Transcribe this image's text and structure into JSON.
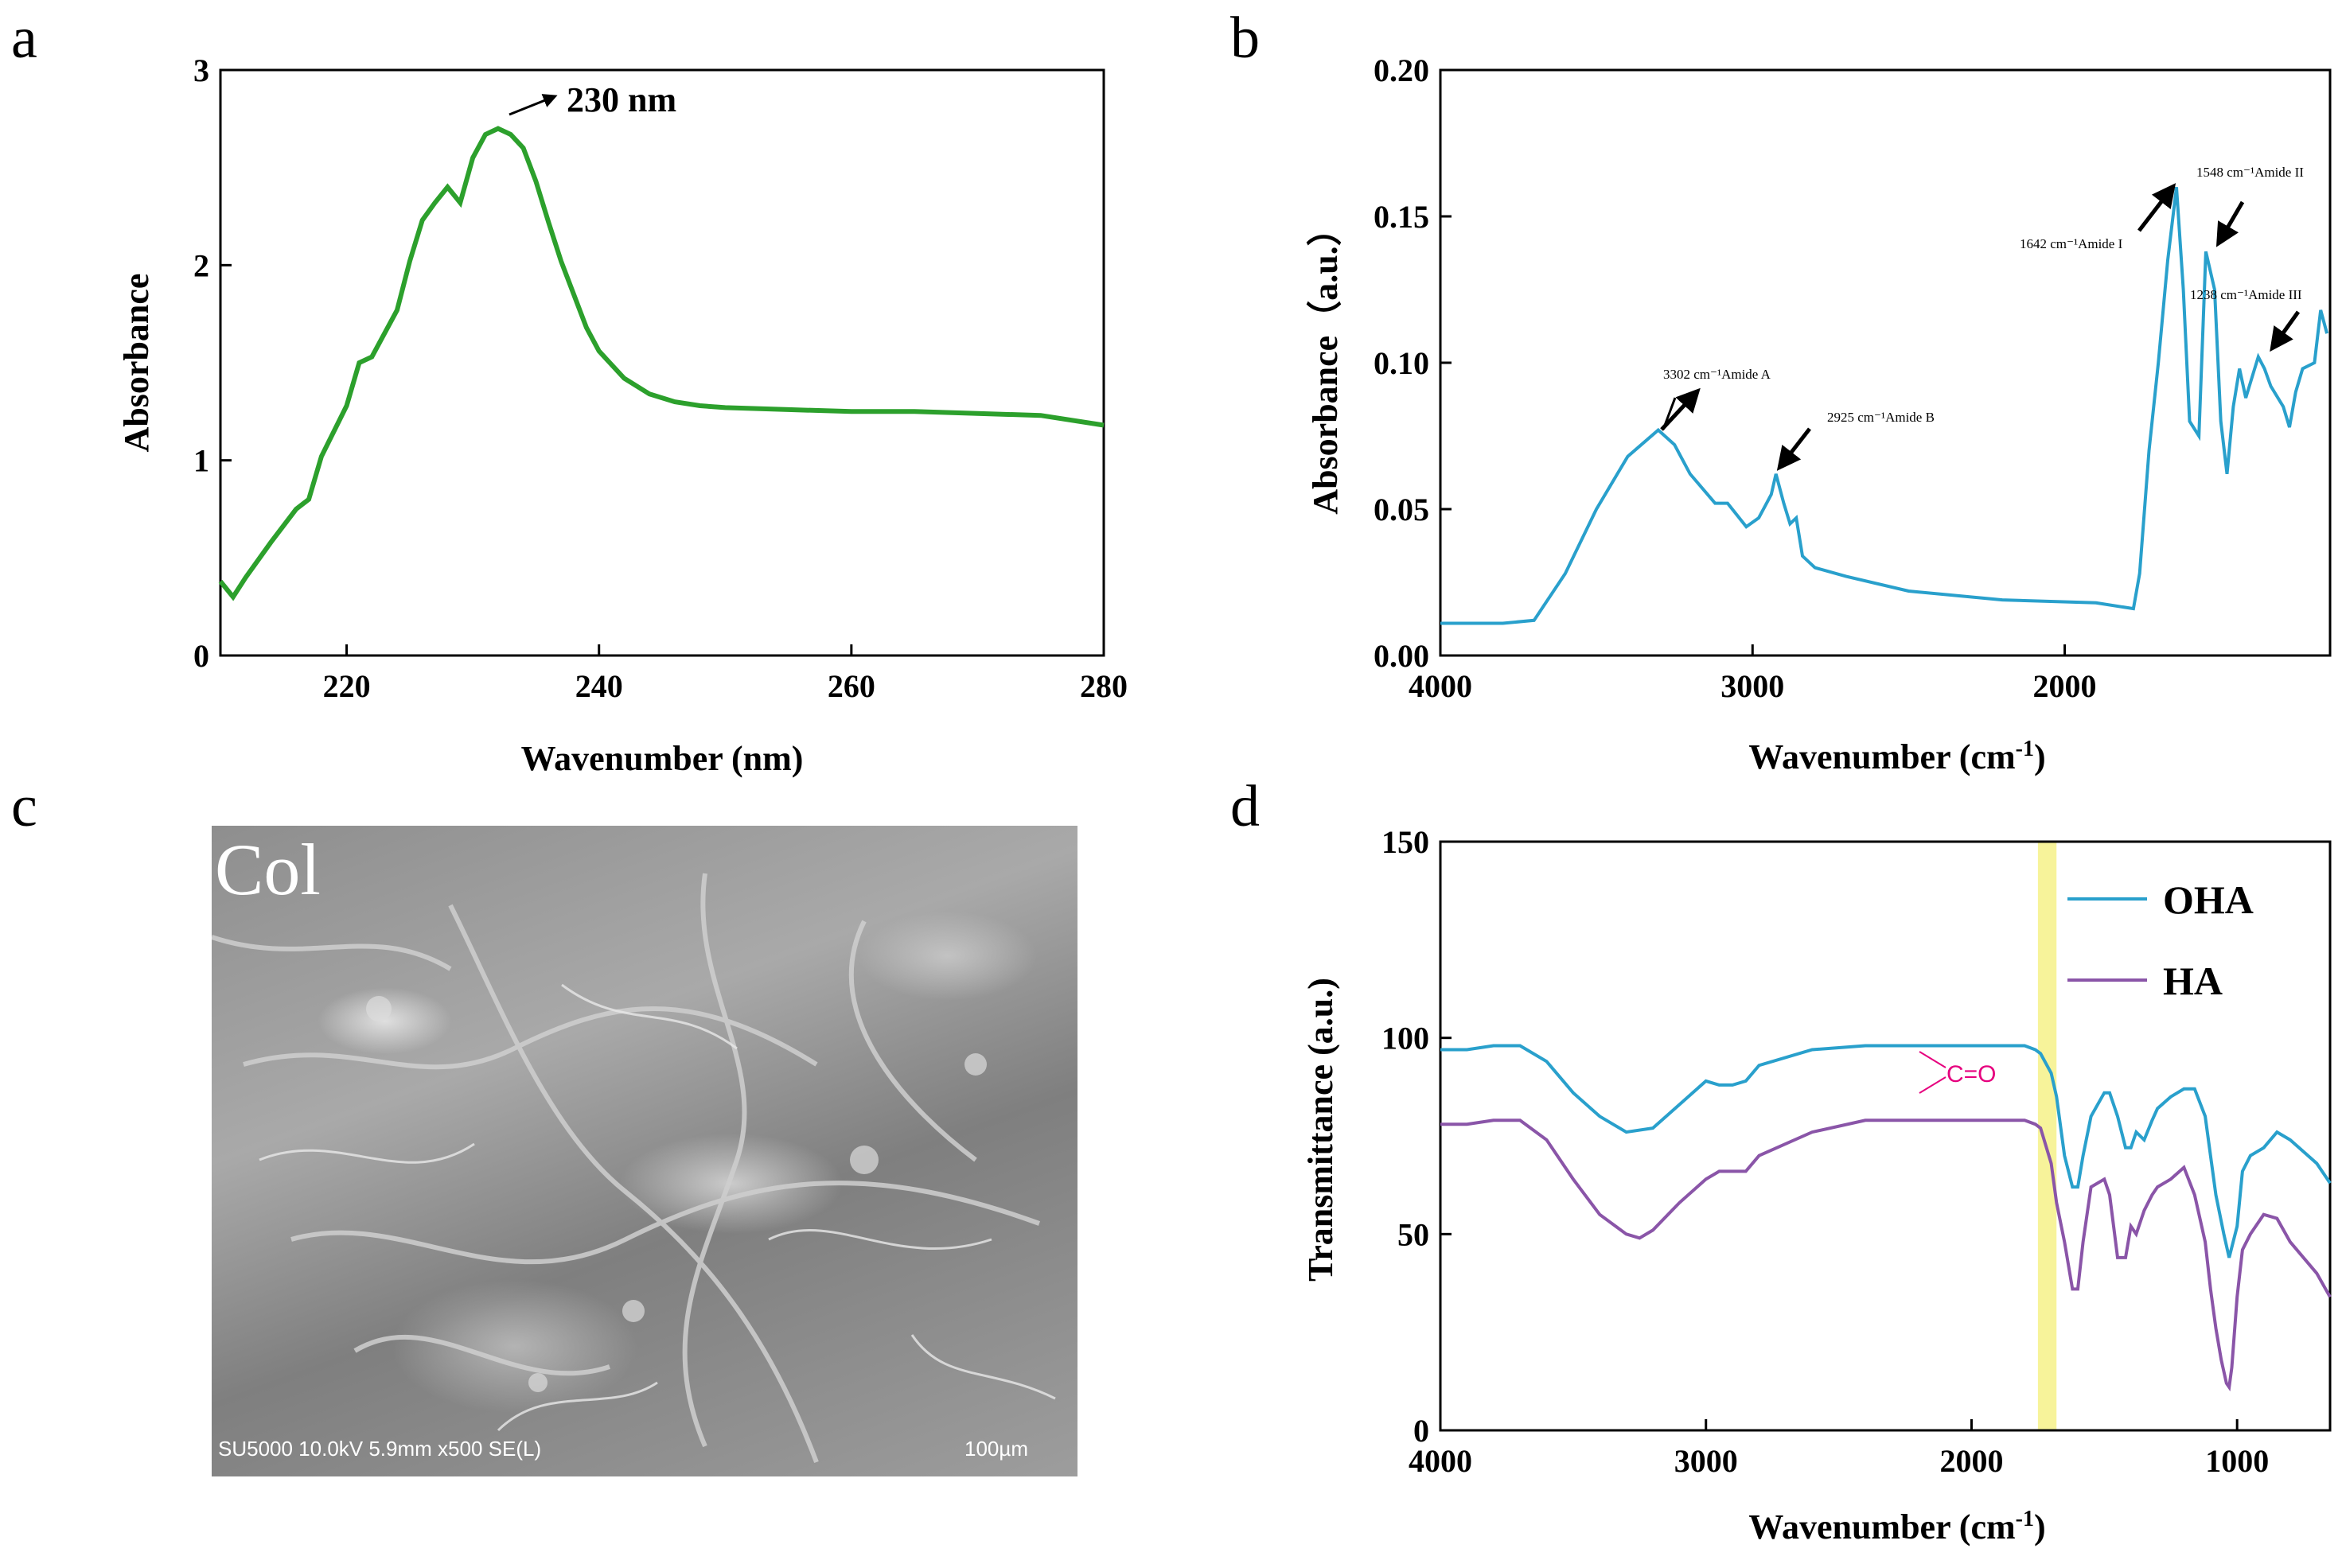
{
  "panels": {
    "a": "a",
    "b": "b",
    "c": "c",
    "d": "d"
  },
  "chart_data": [
    {
      "panel": "a",
      "type": "line",
      "xlabel": "Wavenumber (nm)",
      "ylabel": "Absorbance",
      "xlim": [
        210,
        280
      ],
      "ylim": [
        0,
        3
      ],
      "xticks": [
        "220",
        "240",
        "260",
        "280"
      ],
      "yticks": [
        "0",
        "1",
        "2",
        "3"
      ],
      "color": "#2ca02c",
      "annotation": "230 nm",
      "x": [
        210,
        211,
        212,
        214,
        216,
        217,
        218,
        220,
        221,
        222,
        224,
        225,
        226,
        227,
        228,
        229,
        230,
        231,
        232,
        233,
        234,
        235,
        236,
        237,
        238,
        239,
        240,
        242,
        244,
        246,
        248,
        250,
        255,
        260,
        265,
        270,
        275,
        280
      ],
      "y": [
        0.38,
        0.3,
        0.4,
        0.58,
        0.75,
        0.8,
        1.02,
        1.28,
        1.5,
        1.53,
        1.77,
        2.02,
        2.23,
        2.32,
        2.4,
        2.32,
        2.55,
        2.67,
        2.7,
        2.67,
        2.6,
        2.43,
        2.22,
        2.02,
        1.85,
        1.68,
        1.56,
        1.42,
        1.34,
        1.3,
        1.28,
        1.27,
        1.26,
        1.25,
        1.25,
        1.24,
        1.23,
        1.18
      ]
    },
    {
      "panel": "b",
      "type": "line",
      "xlabel": "Wavenumber (cm",
      "xlabel_sup": "-1",
      "xlabel_end": ")",
      "ylabel": "Absorbance（a.u.）",
      "xlim": [
        4000,
        1150
      ],
      "ylim": [
        0,
        0.2
      ],
      "xticks": [
        "4000",
        "3000",
        "2000"
      ],
      "yticks": [
        "0.00",
        "0.05",
        "0.10",
        "0.15",
        "0.20"
      ],
      "color": "#29a0cc",
      "annotations": [
        "3302 cm⁻¹Amide A",
        "2925 cm⁻¹Amide B",
        "1642 cm⁻¹Amide I",
        "1548 cm⁻¹Amide II",
        "1238 cm⁻¹Amide III"
      ],
      "x": [
        4000,
        3800,
        3700,
        3600,
        3500,
        3400,
        3302,
        3250,
        3200,
        3120,
        3080,
        3020,
        2980,
        2940,
        2925,
        2900,
        2880,
        2860,
        2840,
        2800,
        2700,
        2500,
        2200,
        1900,
        1780,
        1760,
        1730,
        1700,
        1670,
        1642,
        1620,
        1600,
        1570,
        1548,
        1520,
        1500,
        1480,
        1460,
        1440,
        1420,
        1400,
        1380,
        1360,
        1340,
        1300,
        1280,
        1260,
        1238,
        1200,
        1180,
        1160
      ],
      "y": [
        0.011,
        0.011,
        0.012,
        0.028,
        0.05,
        0.068,
        0.077,
        0.072,
        0.062,
        0.052,
        0.052,
        0.044,
        0.047,
        0.055,
        0.062,
        0.052,
        0.045,
        0.047,
        0.034,
        0.03,
        0.027,
        0.022,
        0.019,
        0.018,
        0.016,
        0.028,
        0.07,
        0.1,
        0.135,
        0.16,
        0.125,
        0.08,
        0.075,
        0.138,
        0.125,
        0.08,
        0.062,
        0.085,
        0.098,
        0.088,
        0.095,
        0.102,
        0.098,
        0.092,
        0.085,
        0.078,
        0.09,
        0.098,
        0.1,
        0.118,
        0.11
      ]
    },
    {
      "panel": "d",
      "type": "line",
      "xlabel": "Wavenumber (cm",
      "xlabel_sup": "-1",
      "xlabel_end": ")",
      "ylabel": "Transmittance (a.u.)",
      "xlim": [
        4000,
        650
      ],
      "ylim": [
        0,
        150
      ],
      "xticks": [
        "4000",
        "3000",
        "2000",
        "1000"
      ],
      "yticks": [
        "0",
        "50",
        "100",
        "150"
      ],
      "highlight": {
        "from": 1750,
        "to": 1680,
        "color": "#f7f39a"
      },
      "annotation": "C=O",
      "annotation_color": "#e6007e",
      "series": [
        {
          "name": "OHA",
          "color": "#29a0cc",
          "x": [
            4000,
            3900,
            3800,
            3700,
            3600,
            3500,
            3400,
            3300,
            3200,
            3100,
            3000,
            2950,
            2900,
            2850,
            2800,
            2600,
            2400,
            2200,
            2000,
            1800,
            1760,
            1740,
            1700,
            1680,
            1650,
            1620,
            1600,
            1580,
            1550,
            1500,
            1480,
            1450,
            1420,
            1400,
            1380,
            1350,
            1320,
            1300,
            1250,
            1200,
            1160,
            1120,
            1100,
            1080,
            1050,
            1030,
            1000,
            980,
            950,
            900,
            850,
            800,
            700,
            650
          ],
          "y": [
            97,
            97,
            98,
            98,
            94,
            86,
            80,
            76,
            77,
            83,
            89,
            88,
            88,
            89,
            93,
            97,
            98,
            98,
            98,
            98,
            97,
            96,
            91,
            85,
            70,
            62,
            62,
            70,
            80,
            86,
            86,
            80,
            72,
            72,
            76,
            74,
            79,
            82,
            85,
            87,
            87,
            80,
            70,
            60,
            50,
            44,
            52,
            66,
            70,
            72,
            76,
            74,
            68,
            63
          ]
        },
        {
          "name": "HA",
          "color": "#8a55a8",
          "x": [
            4000,
            3900,
            3800,
            3700,
            3600,
            3500,
            3400,
            3300,
            3250,
            3200,
            3100,
            3000,
            2950,
            2900,
            2850,
            2800,
            2600,
            2400,
            2200,
            2000,
            1800,
            1760,
            1740,
            1700,
            1680,
            1650,
            1620,
            1600,
            1580,
            1550,
            1500,
            1480,
            1450,
            1420,
            1400,
            1380,
            1350,
            1320,
            1300,
            1250,
            1200,
            1160,
            1120,
            1100,
            1080,
            1060,
            1040,
            1030,
            1020,
            1000,
            980,
            950,
            900,
            850,
            800,
            700,
            650
          ],
          "y": [
            78,
            78,
            79,
            79,
            74,
            64,
            55,
            50,
            49,
            51,
            58,
            64,
            66,
            66,
            66,
            70,
            76,
            79,
            79,
            79,
            79,
            78,
            77,
            68,
            58,
            48,
            36,
            36,
            48,
            62,
            64,
            60,
            44,
            44,
            52,
            50,
            56,
            60,
            62,
            64,
            67,
            60,
            48,
            36,
            26,
            18,
            12,
            11,
            16,
            34,
            46,
            50,
            55,
            54,
            48,
            40,
            34
          ]
        }
      ]
    }
  ],
  "sem": {
    "label": "Col",
    "info": "SU5000 10.0kV 5.9mm x500 SE(L)",
    "scale": "100µm"
  }
}
